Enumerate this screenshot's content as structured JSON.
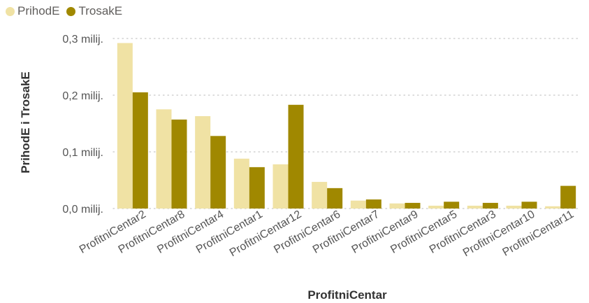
{
  "chart_data": {
    "type": "bar",
    "title": "",
    "xlabel": "ProfitniCentar",
    "ylabel": "PrihodE i TrosakE",
    "ylim": [
      0,
      0.3
    ],
    "yticks": [
      0,
      0.1,
      0.2,
      0.3
    ],
    "ytick_labels": [
      "0,0 milij.",
      "0,1 milij.",
      "0,2 milij.",
      "0,3 milij."
    ],
    "grid": true,
    "legend_position": "top-left",
    "categories": [
      "ProfitniCentar2",
      "ProfitniCentar8",
      "ProfitniCentar4",
      "ProfitniCentar1",
      "ProfitniCentar12",
      "ProfitniCentar6",
      "ProfitniCentar7",
      "ProfitniCentar9",
      "ProfitniCentar5",
      "ProfitniCentar3",
      "ProfitniCentar10",
      "ProfitniCentar11"
    ],
    "series": [
      {
        "name": "PrihodE",
        "color": "#f0e2a4",
        "values": [
          0.292,
          0.175,
          0.163,
          0.088,
          0.078,
          0.047,
          0.014,
          0.009,
          0.005,
          0.005,
          0.005,
          0.004
        ]
      },
      {
        "name": "TrosakE",
        "color": "#a08800",
        "values": [
          0.205,
          0.157,
          0.128,
          0.073,
          0.183,
          0.036,
          0.016,
          0.01,
          0.012,
          0.01,
          0.012,
          0.04
        ]
      }
    ]
  }
}
